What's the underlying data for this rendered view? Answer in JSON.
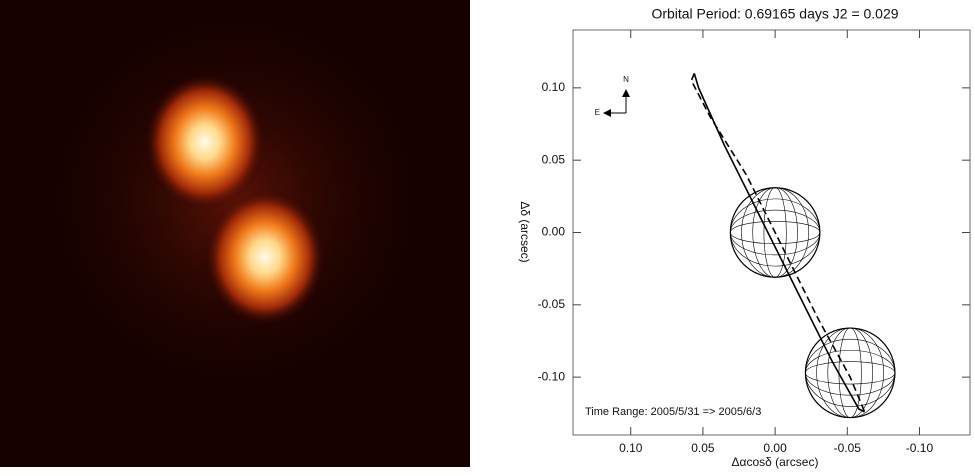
{
  "chart_data": {
    "type": "line",
    "title": "Orbital Period: 0.69165 days   J2 = 0.029",
    "x_label": "Δαcosδ (arcsec)",
    "y_label": "Δδ (arcsec)",
    "annotation": "Time Range: 2005/5/31 => 2005/6/3",
    "compass": {
      "north": "N",
      "east": "E"
    },
    "xlim": [
      0.14,
      -0.135
    ],
    "ylim": [
      -0.14,
      0.14
    ],
    "xticks": [
      {
        "value": 0.1,
        "label": "0.10"
      },
      {
        "value": 0.05,
        "label": "0.05"
      },
      {
        "value": 0,
        "label": "0.00"
      },
      {
        "value": -0.05,
        "label": "-0.05"
      },
      {
        "value": -0.1,
        "label": "-0.10"
      }
    ],
    "yticks": [
      {
        "value": 0.1,
        "label": "0.10"
      },
      {
        "value": 0.05,
        "label": "0.05"
      },
      {
        "value": 0,
        "label": "0.00"
      },
      {
        "value": -0.05,
        "label": "-0.05"
      },
      {
        "value": -0.1,
        "label": "-0.10"
      }
    ],
    "series": [
      {
        "color": "#000000",
        "style": "solid",
        "x": [
          0.056,
          0.053,
          0.035,
          0.01,
          -0.015,
          -0.04,
          -0.058,
          -0.062
        ],
        "values": [
          0.11,
          0.1,
          0.06,
          0.01,
          -0.04,
          -0.09,
          -0.122,
          -0.124
        ]
      },
      {
        "color": "#000000",
        "style": "dashed",
        "x": [
          0.056,
          0.058,
          0.045,
          0.02,
          -0.005,
          -0.03,
          -0.052,
          -0.062
        ],
        "values": [
          0.11,
          0.105,
          0.08,
          0.04,
          -0.01,
          -0.06,
          -0.1,
          -0.124
        ]
      }
    ],
    "bodies": [
      {
        "x": 0,
        "y": 0,
        "r": 0.031
      },
      {
        "x": -0.052,
        "y": -0.097,
        "r": 0.031
      }
    ]
  }
}
